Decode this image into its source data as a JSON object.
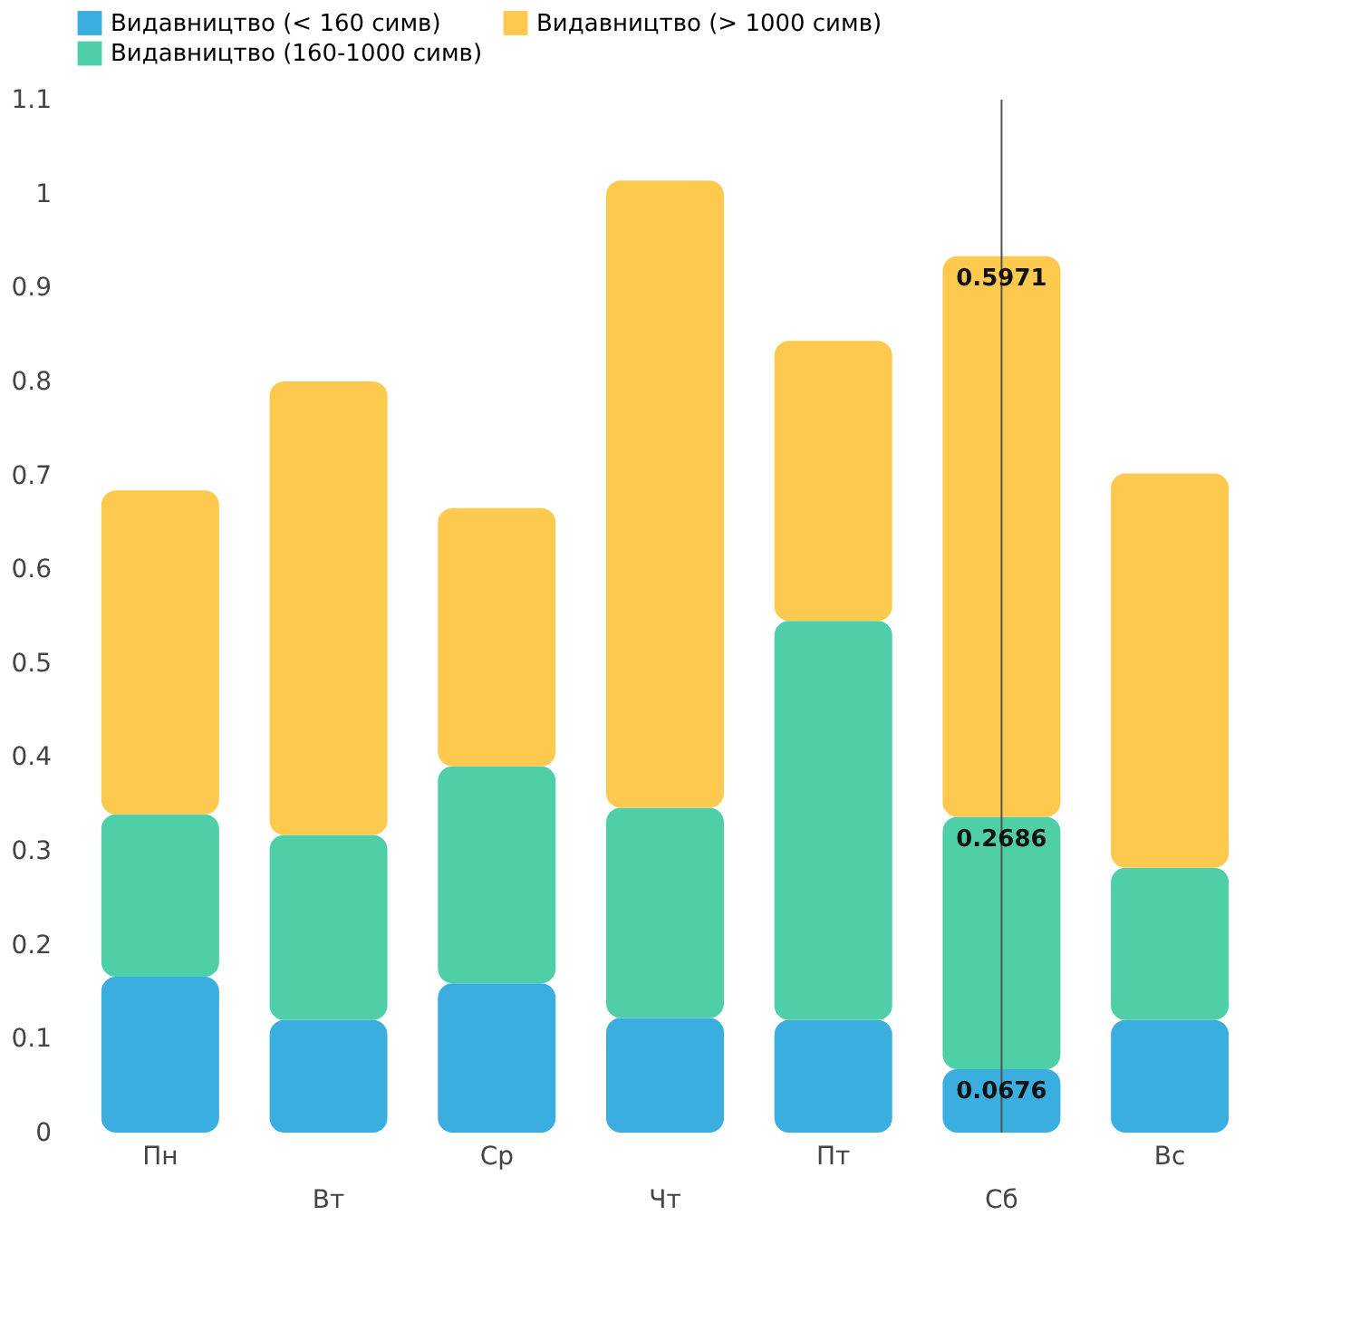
{
  "chart_data": {
    "type": "bar",
    "stacked": true,
    "categories": [
      "Пн",
      "Вт",
      "Ср",
      "Чт",
      "Пт",
      "Сб",
      "Вс"
    ],
    "series": [
      {
        "name": "Видавництво (< 160 симв)",
        "color": "#3aaedf",
        "values": [
          0.166,
          0.12,
          0.159,
          0.122,
          0.12,
          0.0676,
          0.12
        ]
      },
      {
        "name": "Видавництво (160-1000 симв)",
        "color": "#4ecfa8",
        "values": [
          0.173,
          0.197,
          0.231,
          0.224,
          0.425,
          0.2686,
          0.162
        ]
      },
      {
        "name": "Видавництво (> 1000 симв)",
        "color": "#fdc94f",
        "values": [
          0.345,
          0.483,
          0.275,
          0.668,
          0.298,
          0.5971,
          0.42
        ]
      }
    ],
    "ylim": [
      0,
      1.1
    ],
    "yticks": [
      {
        "value": 0,
        "label": "0"
      },
      {
        "value": 0.1,
        "label": "0.1"
      },
      {
        "value": 0.2,
        "label": "0.2"
      },
      {
        "value": 0.3,
        "label": "0.3"
      },
      {
        "value": 0.4,
        "label": "0.4"
      },
      {
        "value": 0.5,
        "label": "0.5"
      },
      {
        "value": 0.6,
        "label": "0.6"
      },
      {
        "value": 0.7,
        "label": "0.7"
      },
      {
        "value": 0.8,
        "label": "0.8"
      },
      {
        "value": 0.9,
        "label": "0.9"
      },
      {
        "value": 1,
        "label": "1"
      },
      {
        "value": 1.1,
        "label": "1.1"
      }
    ],
    "grid": false,
    "legend": "top",
    "ref_lines": [
      {
        "axis": "x",
        "value": "Сб",
        "color": "#555555"
      }
    ],
    "annotations": [
      {
        "text": "0.0676",
        "x": "Сб",
        "y": 0.0676
      },
      {
        "text": "0.2686",
        "x": "Сб",
        "y": 0.3362
      },
      {
        "text": "0.5971",
        "x": "Сб",
        "y": 0.9333
      }
    ]
  }
}
